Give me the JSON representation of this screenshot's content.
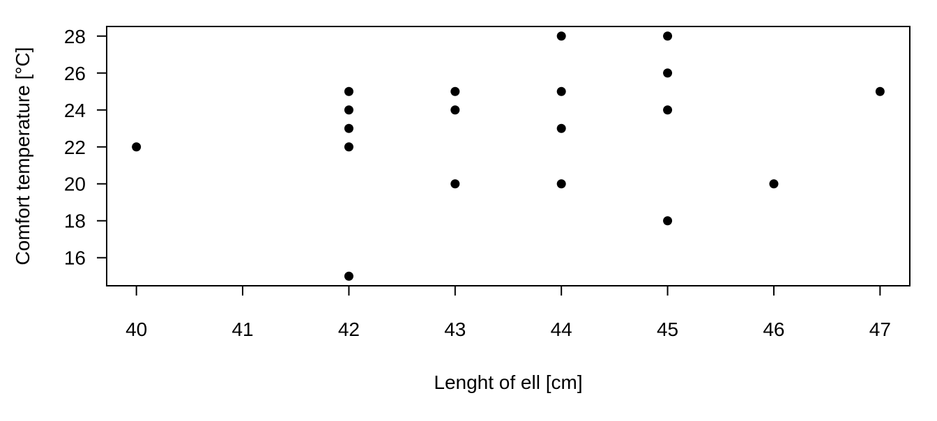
{
  "chart_data": {
    "type": "scatter",
    "title": "",
    "xlabel": "Lenght of ell [cm]",
    "ylabel": "Comfort temperature [°C]",
    "xlim": [
      39.72,
      47.28
    ],
    "ylim": [
      14.48,
      28.52
    ],
    "xticks": [
      40,
      41,
      42,
      43,
      44,
      45,
      46,
      47
    ],
    "yticks": [
      16,
      18,
      20,
      22,
      24,
      26,
      28
    ],
    "grid": false,
    "legend": "none",
    "marker_color": "#000000",
    "points": [
      {
        "x": 40,
        "y": 22
      },
      {
        "x": 42,
        "y": 25
      },
      {
        "x": 42,
        "y": 24
      },
      {
        "x": 42,
        "y": 23
      },
      {
        "x": 42,
        "y": 22
      },
      {
        "x": 42,
        "y": 15
      },
      {
        "x": 43,
        "y": 25
      },
      {
        "x": 43,
        "y": 24
      },
      {
        "x": 43,
        "y": 20
      },
      {
        "x": 44,
        "y": 28
      },
      {
        "x": 44,
        "y": 25
      },
      {
        "x": 44,
        "y": 23
      },
      {
        "x": 44,
        "y": 20
      },
      {
        "x": 45,
        "y": 28
      },
      {
        "x": 45,
        "y": 26
      },
      {
        "x": 45,
        "y": 24
      },
      {
        "x": 45,
        "y": 18
      },
      {
        "x": 46,
        "y": 20
      },
      {
        "x": 47,
        "y": 25
      }
    ]
  }
}
